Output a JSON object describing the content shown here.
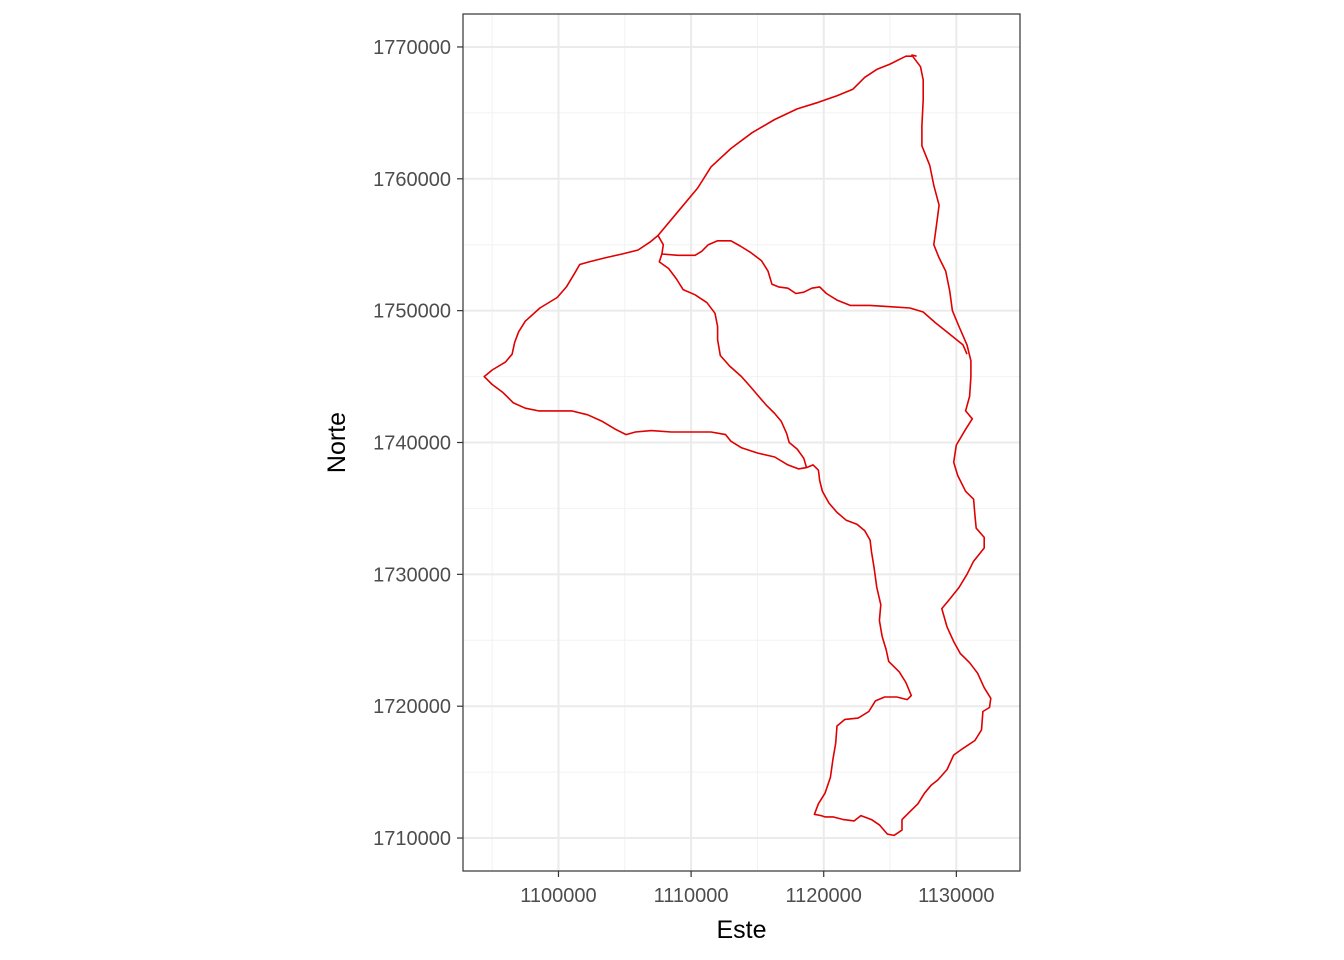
{
  "chart_data": {
    "type": "line",
    "title": "",
    "xlabel": "Este",
    "ylabel": "Norte",
    "xlim": [
      1092800,
      1134800
    ],
    "ylim": [
      1707500,
      1772500
    ],
    "x_ticks": [
      1100000,
      1110000,
      1120000,
      1130000
    ],
    "x_tick_labels": [
      "1100000",
      "1110000",
      "1120000",
      "1130000"
    ],
    "y_ticks": [
      1710000,
      1720000,
      1730000,
      1740000,
      1750000,
      1760000,
      1770000
    ],
    "y_tick_labels": [
      "1710000",
      "1720000",
      "1730000",
      "1740000",
      "1750000",
      "1760000",
      "1770000"
    ],
    "grid": true,
    "line_color": "#e00000",
    "series": [
      {
        "points": [
          [
            1126700,
            1769300
          ],
          [
            1127300,
            1768500
          ],
          [
            1127500,
            1767500
          ],
          [
            1127500,
            1766000
          ],
          [
            1127400,
            1764000
          ],
          [
            1127400,
            1762500
          ],
          [
            1128000,
            1761000
          ],
          [
            1128300,
            1759500
          ],
          [
            1128700,
            1758000
          ],
          [
            1128500,
            1756500
          ],
          [
            1128300,
            1755000
          ],
          [
            1128700,
            1754000
          ],
          [
            1129200,
            1753000
          ],
          [
            1129500,
            1751500
          ],
          [
            1129700,
            1750000
          ],
          [
            1130200,
            1748800
          ],
          [
            1130800,
            1747400
          ],
          [
            1131100,
            1746200
          ],
          [
            1131100,
            1745000
          ],
          [
            1131000,
            1743500
          ],
          [
            1130700,
            1742400
          ],
          [
            1131200,
            1741800
          ],
          [
            1130700,
            1741000
          ],
          [
            1130000,
            1739800
          ],
          [
            1129800,
            1738500
          ],
          [
            1130100,
            1737500
          ],
          [
            1130700,
            1736300
          ],
          [
            1131300,
            1735700
          ],
          [
            1131400,
            1734500
          ],
          [
            1131500,
            1733500
          ],
          [
            1132100,
            1732800
          ],
          [
            1132100,
            1732000
          ],
          [
            1131300,
            1731000
          ],
          [
            1130800,
            1730000
          ],
          [
            1130200,
            1729000
          ],
          [
            1129400,
            1728000
          ],
          [
            1128900,
            1727400
          ],
          [
            1129300,
            1726000
          ],
          [
            1129800,
            1724900
          ],
          [
            1130300,
            1724000
          ],
          [
            1131000,
            1723300
          ],
          [
            1131600,
            1722500
          ],
          [
            1132100,
            1721400
          ],
          [
            1132600,
            1720600
          ],
          [
            1132500,
            1719900
          ],
          [
            1132000,
            1719600
          ],
          [
            1131900,
            1718200
          ],
          [
            1131400,
            1717400
          ],
          [
            1130500,
            1716800
          ],
          [
            1129800,
            1716300
          ],
          [
            1129300,
            1715200
          ],
          [
            1128600,
            1714400
          ],
          [
            1128100,
            1714000
          ],
          [
            1127600,
            1713400
          ],
          [
            1127100,
            1712600
          ],
          [
            1126500,
            1712000
          ],
          [
            1125900,
            1711400
          ],
          [
            1125900,
            1710600
          ],
          [
            1125300,
            1710200
          ],
          [
            1124800,
            1710300
          ],
          [
            1124200,
            1711000
          ],
          [
            1123600,
            1711400
          ],
          [
            1122800,
            1711700
          ],
          [
            1122300,
            1711300
          ],
          [
            1121500,
            1711400
          ],
          [
            1120700,
            1711600
          ],
          [
            1120100,
            1711600
          ],
          [
            1119800,
            1711700
          ],
          [
            1119300,
            1711800
          ],
          [
            1119600,
            1712600
          ],
          [
            1120100,
            1713400
          ],
          [
            1120500,
            1714600
          ],
          [
            1120700,
            1716000
          ],
          [
            1120900,
            1717200
          ],
          [
            1121000,
            1718500
          ],
          [
            1121600,
            1719000
          ],
          [
            1122600,
            1719100
          ],
          [
            1123400,
            1719600
          ],
          [
            1123900,
            1720400
          ],
          [
            1124600,
            1720700
          ],
          [
            1125500,
            1720700
          ],
          [
            1126300,
            1720500
          ],
          [
            1126600,
            1720800
          ],
          [
            1126200,
            1721800
          ],
          [
            1125700,
            1722600
          ],
          [
            1124900,
            1723400
          ],
          [
            1124700,
            1724300
          ],
          [
            1124400,
            1725300
          ],
          [
            1124200,
            1726500
          ],
          [
            1124300,
            1727700
          ],
          [
            1124000,
            1729000
          ],
          [
            1123800,
            1730500
          ],
          [
            1123600,
            1731700
          ],
          [
            1123500,
            1732600
          ],
          [
            1123100,
            1733300
          ],
          [
            1122500,
            1733800
          ],
          [
            1121700,
            1734100
          ],
          [
            1121000,
            1734700
          ],
          [
            1120400,
            1735400
          ],
          [
            1119900,
            1736300
          ],
          [
            1119700,
            1737100
          ],
          [
            1119600,
            1737900
          ],
          [
            1119200,
            1738300
          ],
          [
            1118700,
            1738100
          ],
          [
            1118100,
            1738000
          ],
          [
            1117300,
            1738300
          ],
          [
            1116300,
            1738900
          ],
          [
            1115000,
            1739200
          ],
          [
            1113800,
            1739600
          ],
          [
            1113000,
            1740100
          ],
          [
            1112600,
            1740600
          ],
          [
            1111500,
            1740800
          ],
          [
            1110000,
            1740800
          ],
          [
            1108500,
            1740800
          ],
          [
            1107000,
            1740900
          ],
          [
            1105800,
            1740800
          ],
          [
            1105100,
            1740600
          ],
          [
            1104300,
            1741000
          ],
          [
            1103300,
            1741600
          ],
          [
            1102200,
            1742100
          ],
          [
            1101000,
            1742400
          ],
          [
            1099800,
            1742400
          ],
          [
            1098500,
            1742400
          ],
          [
            1097500,
            1742600
          ],
          [
            1096600,
            1743000
          ],
          [
            1095800,
            1743800
          ],
          [
            1095000,
            1744400
          ],
          [
            1094400,
            1745000
          ],
          [
            1095000,
            1745500
          ],
          [
            1096000,
            1746100
          ],
          [
            1096500,
            1746700
          ],
          [
            1096700,
            1747600
          ],
          [
            1097000,
            1748400
          ],
          [
            1097500,
            1749200
          ],
          [
            1098600,
            1750200
          ],
          [
            1099900,
            1751000
          ],
          [
            1100600,
            1751800
          ],
          [
            1101200,
            1752800
          ],
          [
            1101600,
            1753500
          ],
          [
            1102300,
            1753700
          ],
          [
            1103500,
            1754000
          ],
          [
            1104800,
            1754300
          ],
          [
            1106000,
            1754600
          ],
          [
            1106900,
            1755200
          ],
          [
            1107500,
            1755700
          ],
          [
            1109000,
            1757500
          ],
          [
            1110500,
            1759300
          ],
          [
            1111500,
            1760900
          ],
          [
            1113000,
            1762300
          ],
          [
            1114600,
            1763500
          ],
          [
            1116300,
            1764500
          ],
          [
            1118000,
            1765300
          ],
          [
            1119600,
            1765800
          ],
          [
            1121000,
            1766300
          ],
          [
            1122200,
            1766800
          ],
          [
            1123100,
            1767700
          ],
          [
            1124000,
            1768300
          ],
          [
            1125000,
            1768700
          ],
          [
            1125800,
            1769100
          ],
          [
            1126200,
            1769300
          ],
          [
            1126700,
            1769300
          ]
        ]
      },
      {
        "points": [
          [
            1107500,
            1755700
          ],
          [
            1107900,
            1755000
          ],
          [
            1107800,
            1754300
          ],
          [
            1109000,
            1754200
          ],
          [
            1110300,
            1754200
          ],
          [
            1110800,
            1754500
          ],
          [
            1111300,
            1755000
          ],
          [
            1112000,
            1755300
          ],
          [
            1113000,
            1755300
          ],
          [
            1113700,
            1754900
          ],
          [
            1114500,
            1754400
          ],
          [
            1115300,
            1753800
          ],
          [
            1115800,
            1753000
          ],
          [
            1116100,
            1752000
          ],
          [
            1116600,
            1751800
          ],
          [
            1117300,
            1751700
          ],
          [
            1117900,
            1751300
          ],
          [
            1118500,
            1751400
          ],
          [
            1119100,
            1751700
          ],
          [
            1119700,
            1751800
          ],
          [
            1120200,
            1751300
          ],
          [
            1121000,
            1750800
          ],
          [
            1122000,
            1750400
          ],
          [
            1123500,
            1750400
          ],
          [
            1125000,
            1750300
          ],
          [
            1126500,
            1750200
          ],
          [
            1127500,
            1749900
          ],
          [
            1128400,
            1749100
          ],
          [
            1129400,
            1748300
          ],
          [
            1130500,
            1747400
          ],
          [
            1130800,
            1746700
          ]
        ]
      },
      {
        "points": [
          [
            1107800,
            1754300
          ],
          [
            1107600,
            1753700
          ],
          [
            1108300,
            1753200
          ],
          [
            1108900,
            1752400
          ],
          [
            1109400,
            1751600
          ],
          [
            1110300,
            1751200
          ],
          [
            1111200,
            1750600
          ],
          [
            1111800,
            1749800
          ],
          [
            1112000,
            1748800
          ],
          [
            1112000,
            1747800
          ],
          [
            1112200,
            1746600
          ],
          [
            1112900,
            1745800
          ],
          [
            1113800,
            1745000
          ],
          [
            1114500,
            1744200
          ],
          [
            1115100,
            1743500
          ],
          [
            1115700,
            1742800
          ],
          [
            1116300,
            1742200
          ],
          [
            1116800,
            1741600
          ],
          [
            1117200,
            1740700
          ],
          [
            1117400,
            1740000
          ],
          [
            1118000,
            1739500
          ],
          [
            1118500,
            1738800
          ],
          [
            1118700,
            1738100
          ]
        ]
      },
      {
        "points": [
          [
            1126600,
            1769400
          ],
          [
            1127000,
            1769300
          ]
        ]
      }
    ]
  }
}
